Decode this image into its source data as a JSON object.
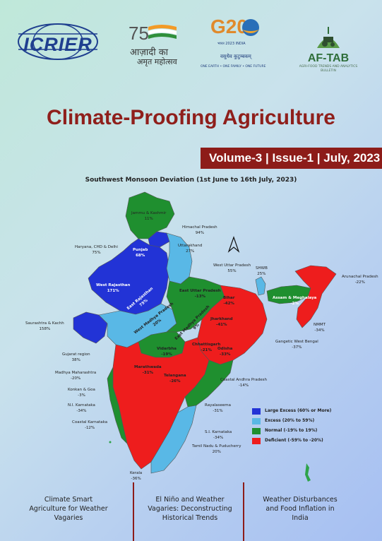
{
  "logos": {
    "icrier": "ICRIER",
    "azadi_line1": "आज़ादी का",
    "azadi_line2": "अमृत महोत्सव",
    "g20": "G20",
    "g20_sub": "भारत 2023 INDIA",
    "g20_motto_hindi": "वसुधैव कुटुम्बकम्",
    "g20_motto_english": "ONE EARTH • ONE FAMILY • ONE FUTURE",
    "aftab": "AF-TAB",
    "aftab_tagline": "AGRI-FOOD TRENDS AND ANALYTICS BULLETIN"
  },
  "title": "Climate-Proofing Agriculture",
  "volume_line": "Volume-3 | Issue-1 | July, 2023",
  "map": {
    "title": "Southwest Monsoon Deviation (1st June to 16th July, 2023)",
    "colors": {
      "large_excess": "#2233d6",
      "excess": "#59b8e6",
      "normal": "#1f8f2f",
      "deficient": "#ee1d1d"
    },
    "regions": [
      {
        "name": "Jammu & Kashmir",
        "value": "11%"
      },
      {
        "name": "Himachal Pradesh",
        "value": "94%"
      },
      {
        "name": "Uttarakhand",
        "value": "27%"
      },
      {
        "name": "Haryana, CHD & Delhi",
        "value": "75%"
      },
      {
        "name": "Punjab",
        "value": "68%"
      },
      {
        "name": "West Uttar Pradesh",
        "value": "55%"
      },
      {
        "name": "West Rajasthan",
        "value": "171%"
      },
      {
        "name": "East Rajasthan",
        "value": "75%"
      },
      {
        "name": "East Uttar Pradesh",
        "value": "-13%"
      },
      {
        "name": "SHWB",
        "value": "25%"
      },
      {
        "name": "Arunachal Pradesh",
        "value": "-22%"
      },
      {
        "name": "Bihar",
        "value": "-42%"
      },
      {
        "name": "Assam & Meghalaya",
        "value": "-2%"
      },
      {
        "name": "West Madhya Pradesh",
        "value": "20%"
      },
      {
        "name": "East Madhya Pradesh",
        "value": "9%"
      },
      {
        "name": "Jharkhand",
        "value": "-41%"
      },
      {
        "name": "Saurashtra & Kachh",
        "value": "158%"
      },
      {
        "name": "NMMT",
        "value": "-34%"
      },
      {
        "name": "Gangetic West Bengal",
        "value": "-37%"
      },
      {
        "name": "Vidarbha",
        "value": "-19%"
      },
      {
        "name": "Chhattisgarh",
        "value": "-21%"
      },
      {
        "name": "Odisha",
        "value": "-33%"
      },
      {
        "name": "Gujarat region",
        "value": "38%"
      },
      {
        "name": "Marathwada",
        "value": "-31%"
      },
      {
        "name": "Madhya Maharashtra",
        "value": "-20%"
      },
      {
        "name": "Telangana",
        "value": "-26%"
      },
      {
        "name": "Coastal Andhra Pradesh",
        "value": "-14%"
      },
      {
        "name": "Konkan & Goa",
        "value": "-3%"
      },
      {
        "name": "N.I. Karnataka",
        "value": "-34%"
      },
      {
        "name": "Rayalaseema",
        "value": "-31%"
      },
      {
        "name": "Coastal Karnataka",
        "value": "-12%"
      },
      {
        "name": "S.I. Karnataka",
        "value": "-34%"
      },
      {
        "name": "Tamil Nadu & Puducherry",
        "value": "20%"
      },
      {
        "name": "Kerala",
        "value": "-36%"
      }
    ],
    "legend": [
      {
        "label": "Large Excess (60% or More)",
        "color": "#2233d6"
      },
      {
        "label": "Excess (20% to 59%)",
        "color": "#59b8e6"
      },
      {
        "label": "Normal (-19% to 19%)",
        "color": "#1f8f2f"
      },
      {
        "label": "Deficient (-59% to -20%)",
        "color": "#ee1d1d"
      }
    ]
  },
  "footer": [
    {
      "line1": "Climate Smart",
      "line2": "Agriculture for Weather",
      "line3": "Vagaries"
    },
    {
      "line1": "El Niño and Weather",
      "line2": "Vagaries: Deconstructing",
      "line3": "Historical Trends"
    },
    {
      "line1": "Weather Disturbances",
      "line2": "and Food Inflation in",
      "line3": "India"
    }
  ]
}
